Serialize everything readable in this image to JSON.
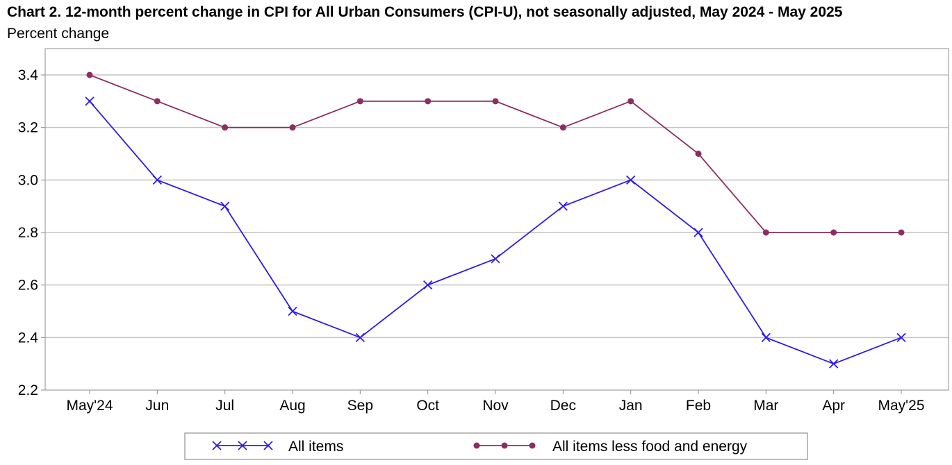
{
  "chart_data": {
    "type": "line",
    "title": "Chart 2. 12-month percent change in CPI for All Urban Consumers (CPI-U), not seasonally adjusted, May 2024 - May 2025",
    "subtitle": "Percent change",
    "categories": [
      "May'24",
      "Jun",
      "Jul",
      "Aug",
      "Sep",
      "Oct",
      "Nov",
      "Dec",
      "Jan",
      "Feb",
      "Mar",
      "Apr",
      "May'25"
    ],
    "ylim": [
      2.2,
      3.4
    ],
    "yticks": [
      "2.2",
      "2.4",
      "2.6",
      "2.8",
      "3.0",
      "3.2",
      "3.4"
    ],
    "grid": true,
    "legend_position": "bottom",
    "series": [
      {
        "name": "All items",
        "color": "#2e1ae8",
        "marker": "x",
        "values": [
          3.3,
          3.0,
          2.9,
          2.5,
          2.4,
          2.6,
          2.7,
          2.9,
          3.0,
          2.8,
          2.4,
          2.3,
          2.4
        ]
      },
      {
        "name": "All items less food and energy",
        "color": "#8b2e62",
        "marker": "circle",
        "values": [
          3.4,
          3.3,
          3.2,
          3.2,
          3.3,
          3.3,
          3.3,
          3.2,
          3.3,
          3.1,
          2.8,
          2.8,
          2.8
        ]
      }
    ]
  }
}
